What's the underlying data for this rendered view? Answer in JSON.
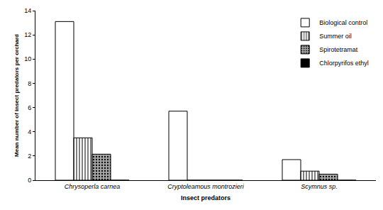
{
  "chart_data": {
    "type": "bar",
    "x_label": "Insect predators",
    "y_label": "Mean number of insect predators per orchard",
    "categories": [
      "Chrysoperla carnea",
      "Cryptoleamous montrozieri",
      "Scymnus sp."
    ],
    "series": [
      {
        "name": "Biological control",
        "color": "#ffffff",
        "values": [
          13.1,
          5.7,
          1.7
        ]
      },
      {
        "name": "Summer oil",
        "color": "#ffffff",
        "values": [
          3.5,
          0,
          0.75
        ]
      },
      {
        "name": "Spirotetramat",
        "color": "#a6a6a6",
        "values": [
          2.15,
          0,
          0.5
        ]
      },
      {
        "name": "Chlorpyrifos ethyl",
        "color": "#000000",
        "values": [
          0,
          0,
          0
        ]
      }
    ],
    "ylim": [
      0,
      14
    ],
    "yticks": [
      0,
      2,
      4,
      6,
      8,
      10,
      12,
      14
    ],
    "grid": false,
    "legend": "top right"
  }
}
